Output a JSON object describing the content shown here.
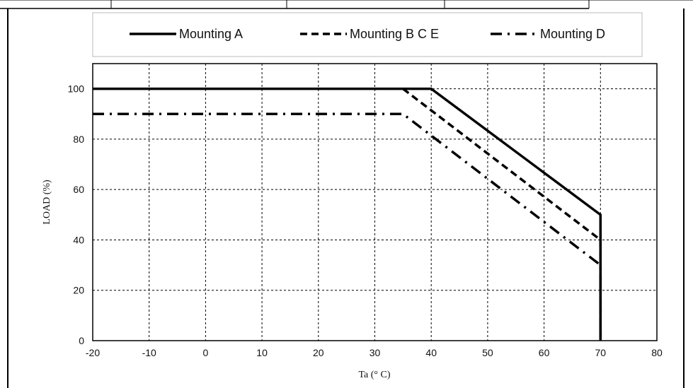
{
  "chart_data": {
    "type": "line",
    "title": "",
    "xlabel": "Ta (° C)",
    "ylabel": "LOAD (%)",
    "xlim": [
      -20,
      80
    ],
    "ylim": [
      0,
      110
    ],
    "x_ticks": [
      -20,
      -10,
      0,
      10,
      20,
      30,
      40,
      50,
      60,
      70,
      80
    ],
    "y_ticks": [
      0,
      20,
      40,
      60,
      80,
      100
    ],
    "grid": true,
    "legend_position": "top",
    "series": [
      {
        "name": "Mounting A",
        "line_style": "solid",
        "color": "#000000",
        "points": [
          [
            -20,
            100
          ],
          [
            40,
            100
          ],
          [
            70,
            50
          ],
          [
            70,
            0
          ]
        ]
      },
      {
        "name": "Mounting B C E",
        "line_style": "dashed",
        "color": "#000000",
        "points": [
          [
            35,
            100
          ],
          [
            70,
            40
          ],
          [
            70,
            0
          ]
        ]
      },
      {
        "name": "Mounting D",
        "line_style": "dash-dot",
        "color": "#000000",
        "points": [
          [
            -20,
            90
          ],
          [
            35,
            90
          ],
          [
            70,
            30
          ],
          [
            70,
            0
          ]
        ]
      }
    ]
  }
}
